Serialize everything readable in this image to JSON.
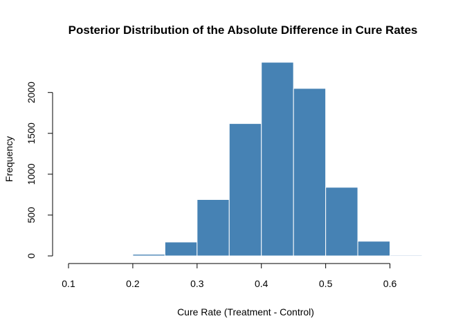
{
  "chart_data": {
    "type": "bar",
    "title": "Posterior Distribution of the Absolute Difference in Cure Rates",
    "xlabel": "Cure Rate (Treatment - Control)",
    "ylabel": "Frequency",
    "bar_color": "#4682b4",
    "bin_edges": [
      0.2,
      0.25,
      0.3,
      0.35,
      0.4,
      0.45,
      0.5,
      0.55,
      0.6,
      0.65
    ],
    "values": [
      20,
      170,
      690,
      1620,
      2370,
      2050,
      840,
      180,
      10
    ],
    "xlim": [
      0.1,
      0.65
    ],
    "ylim": [
      0,
      2370
    ],
    "x_ticks": [
      0.1,
      0.2,
      0.3,
      0.4,
      0.5,
      0.6
    ],
    "x_tick_labels": [
      "0.1",
      "0.2",
      "0.3",
      "0.4",
      "0.5",
      "0.6"
    ],
    "y_ticks": [
      0,
      500,
      1000,
      1500,
      2000
    ],
    "y_tick_labels": [
      "0",
      "500",
      "1000",
      "1500",
      "2000"
    ],
    "grid": false,
    "legend": "none"
  }
}
